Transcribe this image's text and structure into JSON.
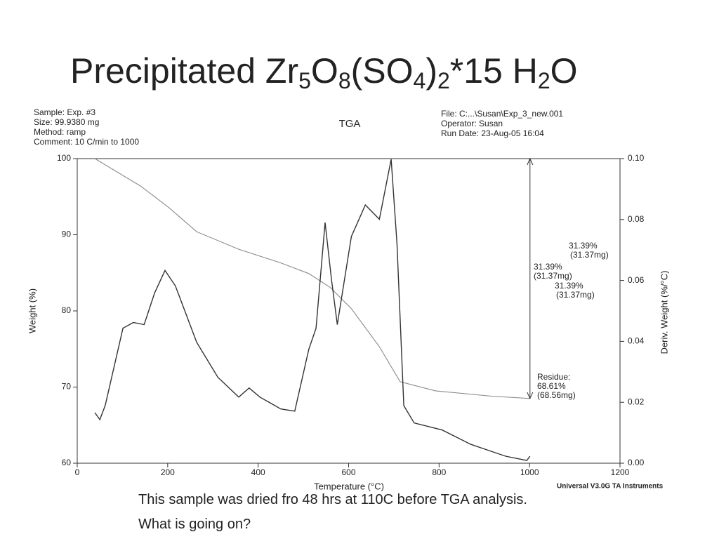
{
  "slide": {
    "title_parts": [
      "Precipitated Zr",
      "5",
      "O",
      "8",
      "(SO",
      "4",
      ")",
      "2",
      "*15 H",
      "2",
      "O"
    ],
    "caption": [
      "This sample was dried fro 48 hrs at 110C before TGA analysis.",
      "What is going on?"
    ]
  },
  "chart_data": {
    "type": "line",
    "title": "TGA",
    "header_left": [
      "Sample: Exp. #3",
      "Size:   99.9380 mg",
      "Method: ramp",
      "Comment: 10 C/min to 1000"
    ],
    "header_right": [
      "File: C:...\\Susan\\Exp_3_new.001",
      "Operator: Susan",
      "Run Date: 23-Aug-05 16:04"
    ],
    "footer": "Universal V3.0G TA Instruments",
    "xlabel": "Temperature (°C)",
    "ylabel": "Weight (%)",
    "y2label": "Deriv. Weight (%/°C)",
    "xlim": [
      0,
      1200
    ],
    "xticks": [
      0,
      200,
      400,
      600,
      800,
      1000,
      1200
    ],
    "ylim": [
      60,
      100
    ],
    "yticks": [
      60,
      70,
      80,
      90,
      100
    ],
    "y2lim": [
      0,
      0.1
    ],
    "y2ticks": [
      {
        "value": 0,
        "label": "0.00"
      },
      {
        "value": 0.02,
        "label": "0.02"
      },
      {
        "value": 0.04,
        "label": "0.04"
      },
      {
        "value": 0.06,
        "label": "0.06"
      },
      {
        "value": 0.08,
        "label": "0.08"
      },
      {
        "value": 0.1,
        "label": "0.10"
      }
    ],
    "annotations": [
      "31.39%",
      "(31.37mg)",
      "31.39%",
      "(31.37mg)",
      "31.39%",
      "(31.37mg)",
      "Residue:",
      "68.61%",
      "(68.56mg)"
    ],
    "series": [
      {
        "name": "Weight",
        "color": "#8a8a8a",
        "x": [
          39,
          140,
          202,
          264,
          357,
          450,
          512,
          559,
          606,
          668,
          714,
          792,
          916,
          1001
        ],
        "values": [
          100,
          96.4,
          93.6,
          90.4,
          88.1,
          86.3,
          84.9,
          83.1,
          80.3,
          75.3,
          70.7,
          69.5,
          68.8,
          68.5
        ]
      },
      {
        "name": "Deriv. Weight",
        "color": "#333333",
        "axis": "y2",
        "x": [
          39,
          50,
          62,
          101,
          124,
          148,
          171,
          194,
          217,
          264,
          311,
          357,
          380,
          404,
          450,
          481,
          512,
          528,
          548,
          562,
          575,
          606,
          637,
          668,
          694,
          707,
          722,
          745,
          807,
          870,
          947,
          994,
          1001
        ],
        "values": [
          0.0166,
          0.0143,
          0.019,
          0.0443,
          0.0462,
          0.0455,
          0.0559,
          0.0633,
          0.0582,
          0.0397,
          0.0282,
          0.0217,
          0.0247,
          0.0217,
          0.0178,
          0.0171,
          0.0374,
          0.0443,
          0.079,
          0.0605,
          0.0455,
          0.0744,
          0.0848,
          0.0801,
          0.0998,
          0.072,
          0.0189,
          0.0132,
          0.0109,
          0.0062,
          0.0023,
          0.0009,
          0.0023
        ]
      }
    ]
  }
}
